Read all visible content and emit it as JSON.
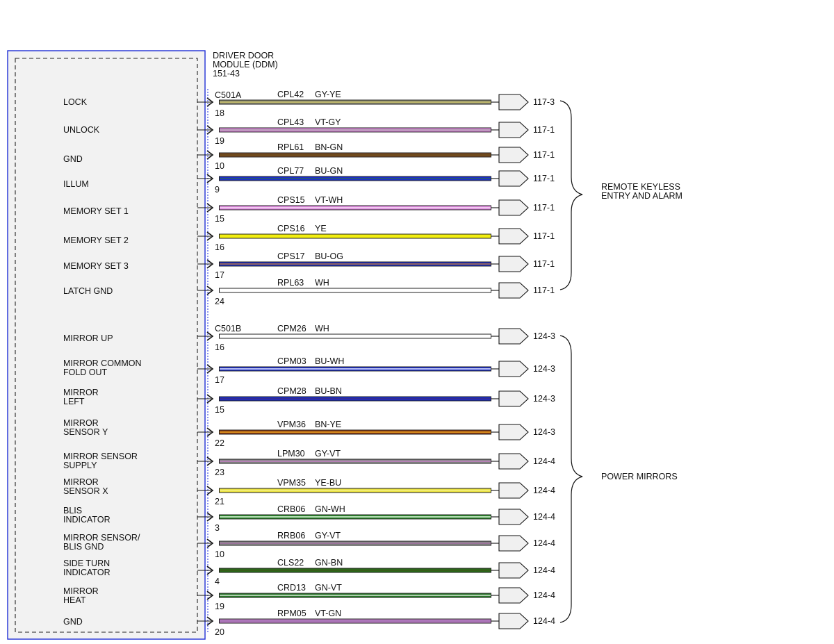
{
  "module": {
    "title_lines": [
      "DRIVER DOOR",
      "MODULE (DDM)"
    ],
    "ref": "151-43",
    "border_color": "#1f2fd6"
  },
  "connectors": [
    {
      "name": "C501A",
      "group": 0
    },
    {
      "name": "C501B",
      "group": 1
    }
  ],
  "groups": [
    {
      "label_lines": [
        "REMOTE KEYLESS",
        "ENTRY AND ALARM"
      ]
    },
    {
      "label_lines": [
        "POWER MIRRORS"
      ]
    }
  ],
  "circuits": [
    {
      "label": [
        "LOCK"
      ],
      "pin": "18",
      "circuit": "CPL42",
      "color_code": "GY-YE",
      "dest": "117-3",
      "colors": [
        "#8a8a70",
        "#c8c06a"
      ],
      "group": 0
    },
    {
      "label": [
        "UNLOCK"
      ],
      "pin": "19",
      "circuit": "CPL43",
      "color_code": "VT-GY",
      "dest": "117-1",
      "colors": [
        "#d98ad9",
        "#b0a0b0"
      ],
      "group": 0
    },
    {
      "label": [
        "GND"
      ],
      "pin": "10",
      "circuit": "RPL61",
      "color_code": "BN-GN",
      "dest": "117-1",
      "colors": [
        "#7a4a22",
        "#6a4a1a"
      ],
      "group": 0
    },
    {
      "label": [
        "ILLUM"
      ],
      "pin": "9",
      "circuit": "CPL77",
      "color_code": "BU-GN",
      "dest": "117-1",
      "colors": [
        "#1b2fc8",
        "#2a5a6a"
      ],
      "group": 0
    },
    {
      "label": [
        "MEMORY SET 1"
      ],
      "pin": "15",
      "circuit": "CPS15",
      "color_code": "VT-WH",
      "dest": "117-1",
      "colors": [
        "#e08ae0",
        "#f5d8f5"
      ],
      "group": 0
    },
    {
      "label": [
        "MEMORY SET 2"
      ],
      "pin": "16",
      "circuit": "CPS16",
      "color_code": "YE",
      "dest": "117-1",
      "colors": [
        "#f2ee10",
        "#f2ee10"
      ],
      "group": 0
    },
    {
      "label": [
        "MEMORY SET 3"
      ],
      "pin": "17",
      "circuit": "CPS17",
      "color_code": "BU-OG",
      "dest": "117-1",
      "colors": [
        "#1b2fc8",
        "#b07040"
      ],
      "group": 0
    },
    {
      "label": [
        "LATCH GND"
      ],
      "pin": "24",
      "circuit": "RPL63",
      "color_code": "WH",
      "dest": "117-1",
      "colors": [
        "#ffffff",
        "#ffffff"
      ],
      "group": 0
    },
    {
      "label": [
        "MIRROR UP"
      ],
      "pin": "16",
      "circuit": "CPM26",
      "color_code": "WH",
      "dest": "124-3",
      "colors": [
        "#ffffff",
        "#ffffff"
      ],
      "group": 1
    },
    {
      "label": [
        "MIRROR COMMON",
        "FOLD OUT"
      ],
      "pin": "17",
      "circuit": "CPM03",
      "color_code": "BU-WH",
      "dest": "124-3",
      "colors": [
        "#1b2fc8",
        "#dfe3ff"
      ],
      "group": 1
    },
    {
      "label": [
        "MIRROR",
        "LEFT"
      ],
      "pin": "15",
      "circuit": "CPM28",
      "color_code": "BU-BN",
      "dest": "124-3",
      "colors": [
        "#1b2fc8",
        "#3a2a8a"
      ],
      "group": 1
    },
    {
      "label": [
        "MIRROR",
        "SENSOR Y"
      ],
      "pin": "22",
      "circuit": "VPM36",
      "color_code": "BN-YE",
      "dest": "124-3",
      "colors": [
        "#8a3a12",
        "#e8a020"
      ],
      "group": 1
    },
    {
      "label": [
        "MIRROR SENSOR",
        "SUPPLY"
      ],
      "pin": "23",
      "circuit": "LPM30",
      "color_code": "GY-VT",
      "dest": "124-4",
      "colors": [
        "#8a8a8a",
        "#c080c0"
      ],
      "group": 1
    },
    {
      "label": [
        "MIRROR",
        "SENSOR X"
      ],
      "pin": "21",
      "circuit": "VPM35",
      "color_code": "YE-BU",
      "dest": "124-4",
      "colors": [
        "#e8e040",
        "#f4f080"
      ],
      "group": 1
    },
    {
      "label": [
        "BLIS",
        "INDICATOR"
      ],
      "pin": "3",
      "circuit": "CRB06",
      "color_code": "GN-WH",
      "dest": "124-4",
      "colors": [
        "#2a8a2a",
        "#d8f0d8"
      ],
      "group": 1
    },
    {
      "label": [
        "MIRROR SENSOR/",
        "BLIS GND"
      ],
      "pin": "10",
      "circuit": "RRB06",
      "color_code": "GY-VT",
      "dest": "124-4",
      "colors": [
        "#8a8a8a",
        "#a070a0"
      ],
      "group": 1
    },
    {
      "label": [
        "SIDE TURN",
        "INDICATOR"
      ],
      "pin": "4",
      "circuit": "CLS22",
      "color_code": "GN-BN",
      "dest": "124-4",
      "colors": [
        "#2a6a1a",
        "#3a5a18"
      ],
      "group": 1
    },
    {
      "label": [
        "MIRROR",
        "HEAT"
      ],
      "pin": "19",
      "circuit": "CRD13",
      "color_code": "GN-VT",
      "dest": "124-4",
      "colors": [
        "#2a7a2a",
        "#d0e0d0"
      ],
      "group": 1
    },
    {
      "label": [
        "GND"
      ],
      "pin": "20",
      "circuit": "RPM05",
      "color_code": "VT-GN",
      "dest": "124-4",
      "colors": [
        "#c080c8",
        "#a070b0"
      ],
      "group": 1
    }
  ]
}
